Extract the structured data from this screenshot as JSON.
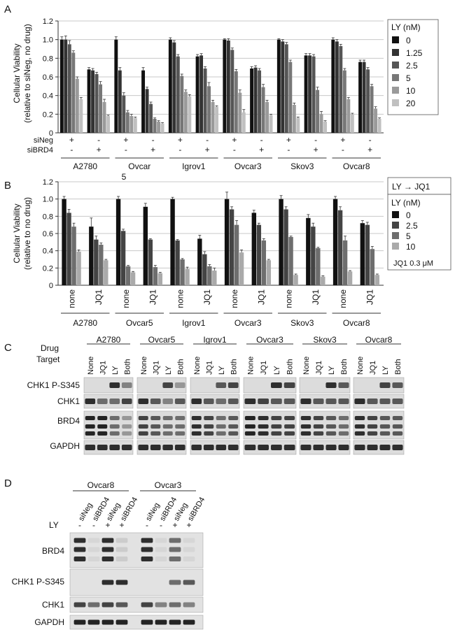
{
  "panels": {
    "A": {
      "letter": "A",
      "ylabel_line1": "Cellular Viability",
      "ylabel_line2": "(relative to siNeg, no drug)",
      "ytick_labels": [
        "0",
        "0.2",
        "0.4",
        "0.6",
        "0.8",
        "1.0",
        "1.2"
      ],
      "legend_title": "LY (nM)",
      "legend_items": [
        "0",
        "1.25",
        "2.5",
        "5",
        "10",
        "20"
      ],
      "row_label_1": "siNeg",
      "row_label_2": "siBRD4",
      "row1_signs": [
        "+",
        "-"
      ],
      "row2_signs": [
        "-",
        "+"
      ],
      "cell_lines": [
        "A2780",
        "Ovcar",
        "Igrov1",
        "Ovcar3",
        "Skov3",
        "Ovcar8"
      ],
      "cell_line_extra": "5"
    },
    "B": {
      "letter": "B",
      "ylabel_line1": "Cellular Viability",
      "ylabel_line2": "(relative to no drug)",
      "ytick_labels": [
        "0",
        "0.2",
        "0.4",
        "0.6",
        "0.8",
        "1.0",
        "1.2"
      ],
      "legend_header": "LY → JQ1",
      "legend_title": "LY (nM)",
      "legend_items": [
        "0",
        "2.5",
        "5",
        "10"
      ],
      "legend_footer": "JQ1 0.3 μM",
      "treatments": [
        "none",
        "JQ1"
      ],
      "cell_lines": [
        "A2780",
        "Ovcar5",
        "Igrov1",
        "Ovcar3",
        "Skov3",
        "Ovcar8"
      ]
    },
    "C": {
      "letter": "C",
      "header_drug": "Drug",
      "header_target": "Target",
      "cell_lines": [
        "A2780",
        "Ovcar5",
        "Igrov1",
        "Ovcar3",
        "Skov3",
        "Ovcar8"
      ],
      "lanes": [
        "None",
        "JQ1",
        "LY",
        "Both"
      ],
      "rows": [
        "CHK1 P-S345",
        "CHK1",
        "BRD4",
        "GAPDH"
      ]
    },
    "D": {
      "letter": "D",
      "cell_lines": [
        "Ovcar8",
        "Ovcar3"
      ],
      "lanes": [
        "siNeg",
        "siBRD4",
        "siNeg",
        "siBRD4"
      ],
      "ly_label": "LY",
      "ly_signs": [
        "-",
        "-",
        "+",
        "+"
      ],
      "rows": [
        "BRD4",
        "CHK1 P-S345",
        "CHK1",
        "GAPDH"
      ]
    }
  },
  "chart_data": [
    {
      "panel": "A",
      "type": "bar",
      "ylabel": "Cellular Viability (relative to siNeg, no drug)",
      "ylim": [
        0,
        1.2
      ],
      "grid": true,
      "legend": "right",
      "categories": [
        "A2780 siNeg",
        "A2780 siBRD4",
        "Ovcar5 siNeg",
        "Ovcar5 siBRD4",
        "Igrov1 siNeg",
        "Igrov1 siBRD4",
        "Ovcar3 siNeg",
        "Ovcar3 siBRD4",
        "Skov3 siNeg",
        "Skov3 siBRD4",
        "Ovcar8 siNeg",
        "Ovcar8 siBRD4"
      ],
      "colors": [
        "#111111",
        "#333333",
        "#555555",
        "#777777",
        "#9a9a9a",
        "#c0c0c0"
      ],
      "series": [
        {
          "name": "0",
          "values": [
            1.0,
            0.68,
            1.0,
            0.67,
            1.0,
            0.82,
            1.0,
            0.69,
            1.0,
            0.83,
            1.0,
            0.76
          ],
          "err": [
            0.03,
            0.02,
            0.03,
            0.03,
            0.02,
            0.02,
            0.01,
            0.02,
            0.01,
            0.02,
            0.02,
            0.02
          ]
        },
        {
          "name": "1.25",
          "values": [
            1.0,
            0.67,
            0.67,
            0.47,
            0.97,
            0.83,
            0.99,
            0.7,
            0.98,
            0.83,
            0.98,
            0.76
          ],
          "err": [
            0.04,
            0.02,
            0.03,
            0.02,
            0.02,
            0.02,
            0.02,
            0.02,
            0.02,
            0.02,
            0.02,
            0.02
          ]
        },
        {
          "name": "2.5",
          "values": [
            0.95,
            0.63,
            0.4,
            0.31,
            0.82,
            0.69,
            0.89,
            0.67,
            0.95,
            0.82,
            0.93,
            0.68
          ],
          "err": [
            0.04,
            0.02,
            0.03,
            0.02,
            0.02,
            0.02,
            0.02,
            0.02,
            0.02,
            0.02,
            0.02,
            0.02
          ]
        },
        {
          "name": "5",
          "values": [
            0.86,
            0.52,
            0.22,
            0.15,
            0.61,
            0.5,
            0.66,
            0.49,
            0.76,
            0.46,
            0.67,
            0.5
          ],
          "err": [
            0.02,
            0.03,
            0.02,
            0.01,
            0.02,
            0.04,
            0.02,
            0.03,
            0.02,
            0.03,
            0.02,
            0.02
          ]
        },
        {
          "name": "10",
          "values": [
            0.58,
            0.33,
            0.18,
            0.12,
            0.44,
            0.33,
            0.43,
            0.33,
            0.3,
            0.2,
            0.36,
            0.26
          ],
          "err": [
            0.02,
            0.03,
            0.02,
            0.01,
            0.02,
            0.02,
            0.03,
            0.02,
            0.02,
            0.03,
            0.02,
            0.02
          ]
        },
        {
          "name": "20",
          "values": [
            0.36,
            0.18,
            0.16,
            0.1,
            0.39,
            0.28,
            0.22,
            0.19,
            0.16,
            0.12,
            0.2,
            0.15
          ],
          "err": [
            0.02,
            0.01,
            0.01,
            0.01,
            0.02,
            0.01,
            0.03,
            0.01,
            0.01,
            0.01,
            0.01,
            0.01
          ]
        }
      ]
    },
    {
      "panel": "B",
      "type": "bar",
      "ylabel": "Cellular Viability (relative to no drug)",
      "ylim": [
        0,
        1.2
      ],
      "grid": true,
      "legend": "right",
      "categories": [
        "A2780 none",
        "A2780 JQ1",
        "Ovcar5 none",
        "Ovcar5 JQ1",
        "Igrov1 none",
        "Igrov1 JQ1",
        "Ovcar3 none",
        "Ovcar3 JQ1",
        "Skov3 none",
        "Skov3 JQ1",
        "Ovcar8 none",
        "Ovcar8 JQ1"
      ],
      "colors": [
        "#111111",
        "#444444",
        "#6e6e6e",
        "#aaaaaa"
      ],
      "series": [
        {
          "name": "0",
          "values": [
            1.0,
            0.68,
            1.0,
            0.91,
            1.0,
            0.54,
            1.0,
            0.84,
            1.0,
            0.78,
            1.0,
            0.72
          ],
          "err": [
            0.03,
            0.1,
            0.03,
            0.04,
            0.02,
            0.04,
            0.08,
            0.03,
            0.04,
            0.04,
            0.03,
            0.03
          ]
        },
        {
          "name": "2.5",
          "values": [
            0.84,
            0.53,
            0.63,
            0.53,
            0.52,
            0.36,
            0.88,
            0.7,
            0.88,
            0.68,
            0.87,
            0.7
          ],
          "err": [
            0.04,
            0.04,
            0.02,
            0.01,
            0.01,
            0.03,
            0.03,
            0.02,
            0.03,
            0.04,
            0.04,
            0.03
          ]
        },
        {
          "name": "5",
          "values": [
            0.68,
            0.47,
            0.22,
            0.21,
            0.3,
            0.22,
            0.7,
            0.52,
            0.56,
            0.43,
            0.52,
            0.42
          ],
          "err": [
            0.04,
            0.02,
            0.01,
            0.02,
            0.01,
            0.02,
            0.05,
            0.02,
            0.01,
            0.01,
            0.05,
            0.03
          ]
        },
        {
          "name": "10",
          "values": [
            0.39,
            0.29,
            0.15,
            0.14,
            0.19,
            0.17,
            0.38,
            0.29,
            0.12,
            0.1,
            0.16,
            0.12
          ],
          "err": [
            0.02,
            0.01,
            0.01,
            0.01,
            0.02,
            0.03,
            0.03,
            0.01,
            0.01,
            0.01,
            0.01,
            0.01
          ]
        }
      ]
    }
  ],
  "blots": {
    "C": [
      [
        [
          0.0,
          0.0,
          0.9,
          0.5
        ],
        [
          0.0,
          0.0,
          0.8,
          0.4
        ],
        [
          0.0,
          0.0,
          0.7,
          0.8
        ],
        [
          0.0,
          0.0,
          0.9,
          0.8
        ],
        [
          0.0,
          0.0,
          0.9,
          0.7
        ],
        [
          0.0,
          0.0,
          0.8,
          0.7
        ]
      ],
      [
        [
          0.9,
          0.6,
          0.6,
          0.8
        ],
        [
          0.9,
          0.7,
          0.5,
          0.7
        ],
        [
          0.9,
          0.7,
          0.6,
          0.7
        ],
        [
          0.9,
          0.8,
          0.7,
          0.7
        ],
        [
          0.9,
          0.7,
          0.7,
          0.7
        ],
        [
          0.9,
          0.7,
          0.7,
          0.7
        ]
      ],
      [
        [
          0.95,
          0.95,
          0.6,
          0.4
        ],
        [
          0.8,
          0.7,
          0.6,
          0.6
        ],
        [
          0.9,
          0.8,
          0.6,
          0.7
        ],
        [
          0.95,
          0.9,
          0.8,
          0.8
        ],
        [
          0.9,
          0.8,
          0.7,
          0.6
        ],
        [
          0.9,
          0.8,
          0.7,
          0.7
        ]
      ],
      [
        [
          0.9,
          0.9,
          0.9,
          0.9
        ],
        [
          0.9,
          0.9,
          0.9,
          0.9
        ],
        [
          0.9,
          0.9,
          0.9,
          0.9
        ],
        [
          0.9,
          0.9,
          0.9,
          0.9
        ],
        [
          0.9,
          0.9,
          0.9,
          0.9
        ],
        [
          0.9,
          0.9,
          0.9,
          0.9
        ]
      ]
    ],
    "D": [
      [
        [
          0.9,
          0.1,
          0.9,
          0.15
        ],
        [
          0.9,
          0.1,
          0.6,
          0.1
        ]
      ],
      [
        [
          0.0,
          0.0,
          0.9,
          0.9
        ],
        [
          0.0,
          0.0,
          0.6,
          0.7
        ]
      ],
      [
        [
          0.8,
          0.6,
          0.8,
          0.7
        ],
        [
          0.8,
          0.5,
          0.6,
          0.5
        ]
      ],
      [
        [
          0.95,
          0.95,
          0.95,
          0.95
        ],
        [
          0.95,
          0.95,
          0.95,
          0.95
        ]
      ]
    ]
  }
}
